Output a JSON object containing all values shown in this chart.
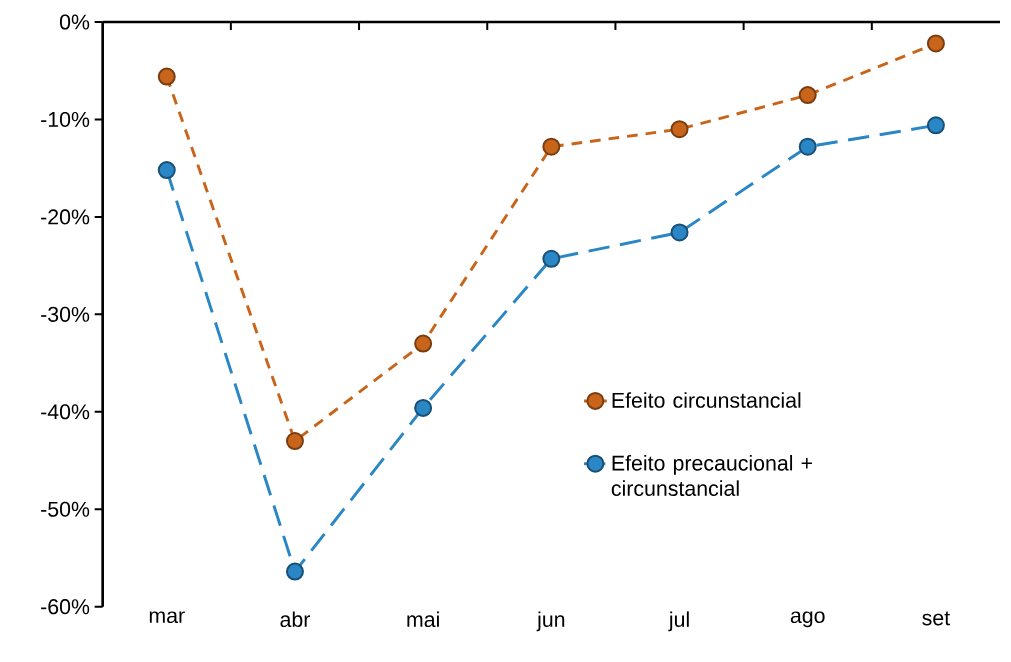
{
  "chart_data": {
    "type": "line",
    "categories": [
      "mar",
      "abr",
      "mai",
      "jun",
      "jul",
      "ago",
      "set"
    ],
    "series": [
      {
        "name": "Efeito circunstancial",
        "color": "#c8651b",
        "values": [
          -5.6,
          -43,
          -33,
          -12.8,
          -11,
          -7.5,
          -2.2
        ]
      },
      {
        "name": "Efeito precaucional + circunstancial",
        "color": "#2a86c4",
        "values": [
          -15.2,
          -56.4,
          -39.6,
          -24.3,
          -21.6,
          -12.8,
          -10.6
        ]
      }
    ],
    "ylim": [
      -60,
      0
    ],
    "yticks": [
      {
        "value": -60,
        "label": "-60%"
      },
      {
        "value": -50,
        "label": "-50%"
      },
      {
        "value": -40,
        "label": "-40%"
      },
      {
        "value": -30,
        "label": "-30%"
      },
      {
        "value": -20,
        "label": "-20%"
      },
      {
        "value": -10,
        "label": "-10%"
      },
      {
        "value": 0,
        "label": "0%"
      }
    ],
    "grid": false,
    "legend": "right",
    "marker": "circle",
    "line_style": "dashed"
  }
}
